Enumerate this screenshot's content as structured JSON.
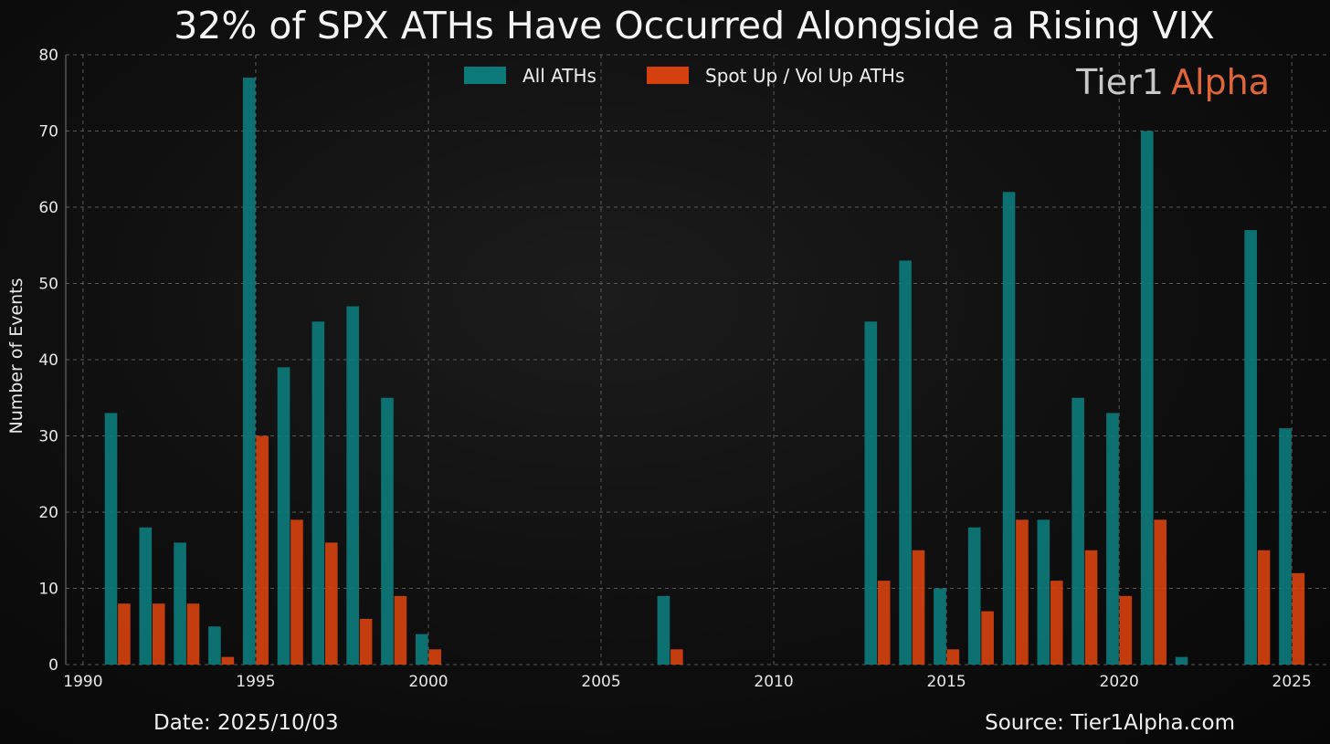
{
  "chart_data": {
    "type": "bar",
    "title": "32% of SPX ATHs Have Occurred Alongside a Rising VIX",
    "ylabel": "Number of Events",
    "xlabel": "",
    "xlim": [
      1989.5,
      2026
    ],
    "ylim": [
      0,
      80
    ],
    "x_ticks": [
      1990,
      1995,
      2000,
      2005,
      2010,
      2015,
      2020,
      2025
    ],
    "y_ticks": [
      0,
      10,
      20,
      30,
      40,
      50,
      60,
      70,
      80
    ],
    "grid": true,
    "legend_position": "top-center",
    "series": [
      {
        "name": "All ATHs",
        "color": "#0c7a78",
        "points": [
          {
            "x": 1991,
            "y": 33
          },
          {
            "x": 1992,
            "y": 18
          },
          {
            "x": 1993,
            "y": 16
          },
          {
            "x": 1994,
            "y": 5
          },
          {
            "x": 1995,
            "y": 77
          },
          {
            "x": 1996,
            "y": 39
          },
          {
            "x": 1997,
            "y": 45
          },
          {
            "x": 1998,
            "y": 47
          },
          {
            "x": 1999,
            "y": 35
          },
          {
            "x": 2000,
            "y": 4
          },
          {
            "x": 2007,
            "y": 9
          },
          {
            "x": 2013,
            "y": 45
          },
          {
            "x": 2014,
            "y": 53
          },
          {
            "x": 2015,
            "y": 10
          },
          {
            "x": 2016,
            "y": 18
          },
          {
            "x": 2017,
            "y": 62
          },
          {
            "x": 2018,
            "y": 19
          },
          {
            "x": 2019,
            "y": 35
          },
          {
            "x": 2020,
            "y": 33
          },
          {
            "x": 2021,
            "y": 70
          },
          {
            "x": 2022,
            "y": 1
          },
          {
            "x": 2024,
            "y": 57
          },
          {
            "x": 2025,
            "y": 31
          }
        ]
      },
      {
        "name": "Spot Up / Vol Up ATHs",
        "color": "#d4410e",
        "points": [
          {
            "x": 1991,
            "y": 8
          },
          {
            "x": 1992,
            "y": 8
          },
          {
            "x": 1993,
            "y": 8
          },
          {
            "x": 1994,
            "y": 1
          },
          {
            "x": 1995,
            "y": 30
          },
          {
            "x": 1996,
            "y": 19
          },
          {
            "x": 1997,
            "y": 16
          },
          {
            "x": 1998,
            "y": 6
          },
          {
            "x": 1999,
            "y": 9
          },
          {
            "x": 2000,
            "y": 2
          },
          {
            "x": 2007,
            "y": 2
          },
          {
            "x": 2013,
            "y": 11
          },
          {
            "x": 2014,
            "y": 15
          },
          {
            "x": 2015,
            "y": 2
          },
          {
            "x": 2016,
            "y": 7
          },
          {
            "x": 2017,
            "y": 19
          },
          {
            "x": 2018,
            "y": 11
          },
          {
            "x": 2019,
            "y": 15
          },
          {
            "x": 2020,
            "y": 9
          },
          {
            "x": 2021,
            "y": 19
          },
          {
            "x": 2024,
            "y": 15
          },
          {
            "x": 2025,
            "y": 12
          }
        ]
      }
    ]
  },
  "branding": {
    "logo_part1": "Tier1",
    "logo_part2": "Alpha",
    "logo_color1": "#c8c8c8",
    "logo_color2": "#e0663a"
  },
  "footer": {
    "date": "Date: 2025/10/03",
    "source": "Source: Tier1Alpha.com"
  }
}
